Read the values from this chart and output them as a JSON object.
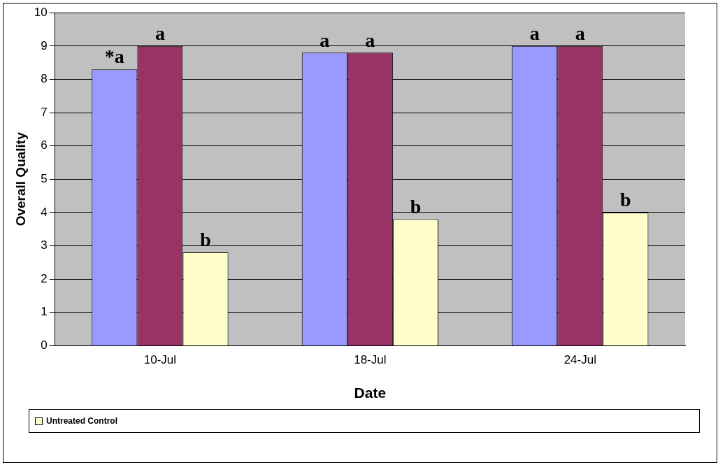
{
  "chart_data": {
    "type": "bar",
    "xlabel": "Date",
    "ylabel": "Overall Quality",
    "categories": [
      "10-Jul",
      "18-Jul",
      "24-Jul"
    ],
    "series": [
      {
        "color": "#9999ff",
        "values": [
          8.3,
          8.8,
          9
        ]
      },
      {
        "color": "#993366",
        "values": [
          9,
          8.8,
          9
        ]
      },
      {
        "name": "Untreated Control",
        "color": "#ffffcc",
        "values": [
          2.8,
          3.8,
          4
        ]
      }
    ],
    "ylim": [
      0,
      10
    ],
    "yticks": [
      0,
      1,
      2,
      3,
      4,
      5,
      6,
      7,
      8,
      9,
      10
    ],
    "grid": "y",
    "legend": "bottom",
    "annotations": [
      "*a",
      "a",
      "b",
      "a",
      "a",
      "b",
      "a",
      "a",
      "b"
    ]
  }
}
